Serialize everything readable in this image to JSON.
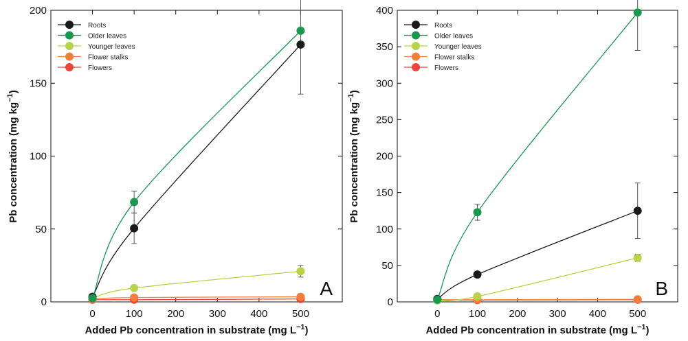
{
  "chart_data": [
    {
      "type": "line",
      "panel_label": "A",
      "xlabel_main": "Added Pb concentration in substrate (mg L",
      "xlabel_sup": "−1",
      "xlabel_end": ")",
      "ylabel_main": "Pb concentration (mg kg",
      "ylabel_sup": "−1",
      "ylabel_end": ")",
      "xlim": [
        -100,
        600
      ],
      "ylim": [
        0,
        200
      ],
      "x_ticks": [
        0,
        100,
        200,
        300,
        400,
        500
      ],
      "x_tick_labels": [
        "0",
        "100",
        "200",
        "300",
        "400",
        "500"
      ],
      "y_ticks": [
        0,
        50,
        100,
        150,
        200
      ],
      "y_tick_labels": [
        "0",
        "50",
        "100",
        "150",
        "200"
      ],
      "legend_position": "top-left",
      "series": [
        {
          "name": "Roots",
          "color": "#1a1a1a",
          "x": [
            0,
            100,
            500
          ],
          "values": [
            3.5,
            50.5,
            176.5
          ],
          "errors": [
            0,
            10.5,
            34
          ]
        },
        {
          "name": "Older leaves",
          "color": "#1a9850",
          "x": [
            0,
            100,
            500
          ],
          "values": [
            2.5,
            68.5,
            186
          ],
          "errors": [
            0,
            7.5,
            0
          ]
        },
        {
          "name": "Younger leaves",
          "color": "#b8d349",
          "x": [
            0,
            100,
            500
          ],
          "values": [
            2.5,
            9.5,
            21
          ],
          "errors": [
            0,
            0,
            4
          ]
        },
        {
          "name": "Flower stalks",
          "color": "#f07f3c",
          "x": [
            0,
            100,
            500
          ],
          "values": [
            2,
            3,
            3.5
          ],
          "errors": [
            0,
            0,
            0
          ]
        },
        {
          "name": "Flowers",
          "color": "#e8453c",
          "x": [
            0,
            100,
            500
          ],
          "values": [
            1.5,
            1.5,
            2
          ],
          "errors": [
            0,
            0,
            0
          ]
        }
      ]
    },
    {
      "type": "line",
      "panel_label": "B",
      "xlabel_main": "Added Pb concentration in substrate (mg L",
      "xlabel_sup": "−1",
      "xlabel_end": ")",
      "ylabel_main": "Pb concentration (mg kg",
      "ylabel_sup": "−1",
      "ylabel_end": ")",
      "xlim": [
        -100,
        600
      ],
      "ylim": [
        0,
        400
      ],
      "x_ticks": [
        0,
        100,
        200,
        300,
        400,
        500
      ],
      "x_tick_labels": [
        "0",
        "100",
        "200",
        "300",
        "400",
        "500"
      ],
      "y_ticks": [
        0,
        50,
        100,
        150,
        200,
        250,
        300,
        350,
        400
      ],
      "y_tick_labels": [
        "0",
        "50",
        "100",
        "150",
        "200",
        "250",
        "300",
        "350",
        "400"
      ],
      "legend_position": "top-left",
      "series": [
        {
          "name": "Roots",
          "color": "#1a1a1a",
          "x": [
            0,
            100,
            500
          ],
          "values": [
            4,
            37.5,
            125
          ],
          "errors": [
            0,
            0,
            38
          ]
        },
        {
          "name": "Older leaves",
          "color": "#1a9850",
          "x": [
            0,
            100,
            500
          ],
          "values": [
            3,
            123,
            397
          ],
          "errors": [
            0,
            11,
            52
          ]
        },
        {
          "name": "Younger leaves",
          "color": "#b8d349",
          "x": [
            0,
            100,
            500
          ],
          "values": [
            2,
            7.5,
            60.5
          ],
          "errors": [
            0,
            0,
            5
          ]
        },
        {
          "name": "Flower stalks",
          "color": "#f07f3c",
          "x": [
            0,
            100,
            500
          ],
          "values": [
            3,
            3,
            3.5
          ],
          "errors": [
            0,
            0,
            0
          ]
        },
        {
          "name": "Flowers",
          "color": "#e8453c",
          "x": [
            0,
            100,
            500
          ],
          "values": [
            2.5,
            2.5,
            3
          ],
          "errors": [
            0,
            0,
            0
          ]
        }
      ]
    }
  ]
}
